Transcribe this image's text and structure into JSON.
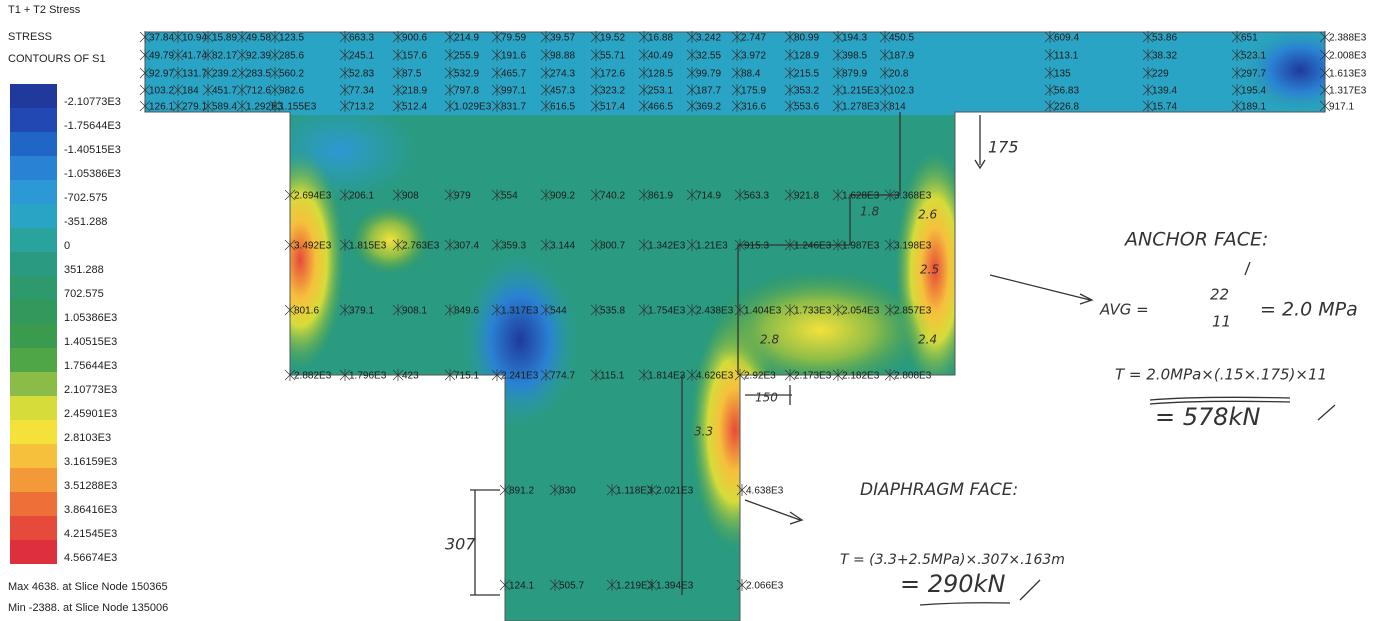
{
  "header": {
    "title": "T1 + T2 Stress",
    "line1": "STRESS",
    "line2": "CONTOURS OF S1"
  },
  "legend": {
    "labels": [
      "-2.10773E3",
      "-1.75644E3",
      "-1.40515E3",
      "-1.05386E3",
      "-702.575",
      "-351.288",
      "0",
      "351.288",
      "702.575",
      "1.05386E3",
      "1.40515E3",
      "1.75644E3",
      "2.10773E3",
      "2.45901E3",
      "2.8103E3",
      "3.16159E3",
      "3.51288E3",
      "3.86416E3",
      "4.21545E3",
      "4.56674E3"
    ],
    "colors": [
      "#1f3a9c",
      "#2248b4",
      "#2066c6",
      "#2a82d4",
      "#2c98d6",
      "#2aa4c4",
      "#2aa39c",
      "#2a9a80",
      "#2e996c",
      "#33985c",
      "#3a9b4e",
      "#4fa646",
      "#8cbc48",
      "#d6dc3a",
      "#f4e23a",
      "#f6c03c",
      "#f3993a",
      "#ee7038",
      "#e64a3a",
      "#de303c"
    ]
  },
  "footer": {
    "max": "Max 4638. at Slice Node 150365",
    "min": "Min -2388. at Slice Node 135006"
  },
  "nodes": {
    "flange": [
      [
        "37.84",
        "10.94",
        "15.89",
        "49.58",
        "123.5",
        "663.3",
        "900.6",
        "214.9",
        "79.59",
        "39.57",
        "19.52",
        "16.88",
        "3.242",
        "2.747",
        "80.99",
        "194.3",
        "450.5",
        "609.4",
        "53.86",
        "651",
        "2.388E3"
      ],
      [
        "49.79",
        "41.74",
        "82.17",
        "92.39",
        "285.6",
        "245.1",
        "157.6",
        "255.9",
        "191.6",
        "98.88",
        "55.71",
        "40.49",
        "32.55",
        "3.972",
        "128.9",
        "398.5",
        "187.9",
        "113.1",
        "38.32",
        "523.1",
        "2.008E3"
      ],
      [
        "92.97",
        "131.7",
        "239.2",
        "283.5",
        "560.2",
        "52.83",
        "87.5",
        "532.9",
        "465.7",
        "274.3",
        "172.6",
        "128.5",
        "99.79",
        "88.4",
        "215.5",
        "879.9",
        "20.8",
        "135",
        "229",
        "297.7",
        "1.613E3"
      ],
      [
        "103.2",
        "184",
        "451.7",
        "712.6",
        "982.6",
        "77.34",
        "218.9",
        "797.8",
        "997.1",
        "457.3",
        "323.2",
        "253.1",
        "187.7",
        "175.9",
        "353.2",
        "1.215E3",
        "102.3",
        "56.83",
        "139.4",
        "195.4",
        "1.317E3"
      ],
      [
        "126.1",
        "279.1",
        "589.4",
        "1.292E3",
        "1.155E3",
        "713.2",
        "512.4",
        "1.029E3",
        "831.7",
        "616.5",
        "517.4",
        "466.5",
        "369.2",
        "316.6",
        "553.6",
        "1.278E3",
        "814",
        "226.8",
        "15.74",
        "189.1",
        "917.1"
      ]
    ],
    "web": [
      [
        "2.694E3",
        "206.1",
        "908",
        "979",
        "554",
        "909.2",
        "740.2",
        "861.9",
        "714.9",
        "563.3",
        "921.8",
        "1.628E3",
        "3.368E3"
      ],
      [
        "3.492E3",
        "1.815E3",
        "2.763E3",
        "307.4",
        "359.3",
        "3.144",
        "800.7",
        "1.342E3",
        "1.21E3",
        "915.3",
        "1.246E3",
        "1.987E3",
        "3.198E3"
      ],
      [
        "801.6",
        "379.1",
        "908.1",
        "849.6",
        "1.317E3",
        "544",
        "535.8",
        "1.754E3",
        "2.438E3",
        "1.404E3",
        "1.733E3",
        "2.054E3",
        "2.857E3"
      ],
      [
        "2.882E3",
        "1.796E3",
        "423",
        "715.1",
        "2.241E3",
        "774.7",
        "115.1",
        "1.814E3",
        "4.626E3",
        "2.92E3",
        "2.173E3",
        "2.182E3",
        "2.808E3"
      ]
    ],
    "stem": [
      [
        "891.2",
        "830",
        "1.118E3",
        "2.021E3",
        "4.638E3"
      ],
      [
        "124.1",
        "505.7",
        "1.219E3",
        "1.394E3",
        "2.066E3"
      ]
    ]
  },
  "annotations": {
    "dim_175": "175",
    "dim_150": "150",
    "dim_307": "307",
    "contour_marks": [
      "2.6",
      "2.5",
      "2.4",
      "2.8",
      "3.3",
      "1.8"
    ],
    "anchor": {
      "title": "ANCHOR FACE:",
      "avg": "AVG =",
      "num": "22",
      "den": "11",
      "avg_result": "= 2.0 MPa",
      "t": "T = 2.0MPa×(.15×.175)×11",
      "t_result": "= 578kN"
    },
    "diaphragm": {
      "title": "DIAPHRAGM FACE:",
      "t": "T = (3.3+2.5MPa)×.307×.163m",
      "t_result": "= 290kN"
    }
  }
}
